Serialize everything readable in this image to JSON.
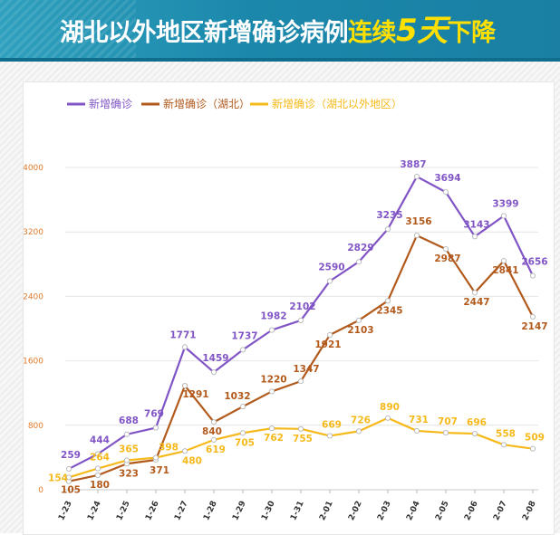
{
  "header": {
    "title_part1": "湖北以外地区新增确诊病例",
    "title_part2": "连续",
    "title_part3": "5天",
    "title_part4": "下降"
  },
  "chart_data": {
    "type": "line",
    "title": "湖北以外地区新增确诊病例连续5天下降",
    "categories": [
      "1-23",
      "1-24",
      "1-25",
      "1-26",
      "1-27",
      "1-28",
      "1-29",
      "1-30",
      "1-31",
      "2-01",
      "2-02",
      "2-03",
      "2-04",
      "2-05",
      "2-06",
      "2-07",
      "2-08"
    ],
    "yticks": [
      0,
      800,
      1600,
      2400,
      3200,
      4000
    ],
    "ylim": [
      0,
      4400
    ],
    "grid": true,
    "legend_position": "top-left",
    "series": [
      {
        "name": "新增确诊",
        "color": "#8155c6",
        "values": [
          259,
          444,
          688,
          769,
          1771,
          1459,
          1737,
          1982,
          2102,
          2590,
          2829,
          3235,
          3887,
          3694,
          3143,
          3399,
          2656
        ]
      },
      {
        "name": "新增确诊（湖北）",
        "color": "#b2591c",
        "values": [
          105,
          180,
          323,
          371,
          1291,
          840,
          1032,
          1220,
          1347,
          1921,
          2103,
          2345,
          3156,
          2987,
          2447,
          2841,
          2147
        ]
      },
      {
        "name": "新增确诊（湖北以外地区）",
        "color": "#f5b91a",
        "values": [
          154,
          264,
          365,
          398,
          480,
          619,
          705,
          762,
          755,
          669,
          726,
          890,
          731,
          707,
          696,
          558,
          509
        ]
      }
    ]
  }
}
